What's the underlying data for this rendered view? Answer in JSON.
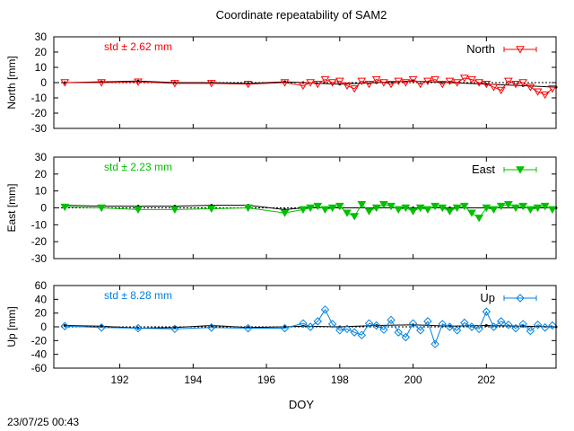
{
  "figure": {
    "title": "Coordinate repeatability of SAM2",
    "xlabel": "DOY",
    "timestamp": "23/07/25 00:43",
    "x_ticks": [
      192,
      194,
      196,
      198,
      200,
      202
    ],
    "xlim": [
      190.2,
      203.9
    ]
  },
  "chart_data": [
    {
      "type": "line",
      "name": "North",
      "ylabel": "North [mm]",
      "stat": "std ± 2.62 mm",
      "legend": "North",
      "legend_position": "top-right",
      "color": "#ff0000",
      "marker": "triangle-down-open",
      "ylim": [
        -30,
        30
      ],
      "y_ticks": [
        30,
        20,
        10,
        0,
        -10,
        -20,
        -30
      ],
      "reference_x": [
        190.5,
        191.5,
        192.5,
        193.5,
        194.5,
        195.5,
        196.5,
        197.0,
        198.0,
        199.0,
        200.0,
        201.0,
        202.0,
        203.0,
        203.9
      ],
      "reference_y": [
        0,
        0.5,
        1,
        0,
        0,
        -0.5,
        0.5,
        0,
        -1,
        0,
        1,
        0,
        -1,
        -2,
        -3
      ],
      "x": [
        190.5,
        191.5,
        192.5,
        193.5,
        194.5,
        195.5,
        196.5,
        197.0,
        197.2,
        197.4,
        197.6,
        197.8,
        198.0,
        198.2,
        198.4,
        198.6,
        198.8,
        199.0,
        199.2,
        199.4,
        199.6,
        199.8,
        200.0,
        200.2,
        200.4,
        200.6,
        200.8,
        201.0,
        201.2,
        201.4,
        201.6,
        201.8,
        202.0,
        202.2,
        202.4,
        202.6,
        202.8,
        203.0,
        203.2,
        203.4,
        203.6,
        203.8
      ],
      "y": [
        0,
        0,
        0.5,
        -0.5,
        -0.5,
        -1,
        0,
        -2,
        0,
        -1,
        2,
        0,
        1,
        -2,
        -4,
        1,
        -1,
        2,
        0,
        -1,
        1,
        0,
        2,
        -1,
        1,
        2,
        -1,
        1,
        0,
        3,
        2,
        0,
        -1,
        -3,
        -5,
        1,
        -1,
        0,
        -3,
        -6,
        -8,
        -4
      ]
    },
    {
      "type": "line",
      "name": "East",
      "ylabel": "East [mm]",
      "stat": "std ± 2.23 mm",
      "legend": "East",
      "legend_position": "top-right",
      "color": "#00c000",
      "marker": "triangle-down-filled",
      "ylim": [
        -30,
        30
      ],
      "y_ticks": [
        30,
        20,
        10,
        0,
        -10,
        -20,
        -30
      ],
      "reference_x": [
        190.5,
        191.5,
        192.5,
        193.5,
        194.5,
        195.5,
        196.5,
        197.0,
        198.0,
        199.0,
        200.0,
        201.0,
        202.0,
        203.0,
        203.9
      ],
      "reference_y": [
        1.5,
        1,
        1,
        1,
        1.5,
        1.5,
        -1,
        0,
        0,
        0,
        0,
        0,
        0,
        0,
        0
      ],
      "x": [
        190.5,
        191.5,
        192.5,
        193.5,
        194.5,
        195.5,
        196.5,
        197.0,
        197.2,
        197.4,
        197.6,
        197.8,
        198.0,
        198.2,
        198.4,
        198.6,
        198.8,
        199.0,
        199.2,
        199.4,
        199.6,
        199.8,
        200.0,
        200.2,
        200.4,
        200.6,
        200.8,
        201.0,
        201.2,
        201.4,
        201.6,
        201.8,
        202.0,
        202.2,
        202.4,
        202.6,
        202.8,
        203.0,
        203.2,
        203.4,
        203.6,
        203.8
      ],
      "y": [
        0.5,
        0,
        -1,
        -1,
        -0.5,
        0,
        -3,
        -1,
        0,
        1,
        -1,
        0,
        1,
        -3,
        -5,
        2,
        -2,
        0,
        2,
        1,
        -1,
        0,
        -2,
        0,
        -1,
        1,
        0,
        -2,
        0,
        1,
        -3,
        -6,
        0,
        -1,
        1,
        2,
        0,
        1,
        -1,
        0,
        1,
        -1
      ]
    },
    {
      "type": "line",
      "name": "Up",
      "ylabel": "Up [mm]",
      "stat": "std ± 8.28 mm",
      "legend": "Up",
      "legend_position": "top-right",
      "color": "#0080e0",
      "marker": "diamond-open",
      "ylim": [
        -60,
        60
      ],
      "y_ticks": [
        60,
        40,
        20,
        0,
        -20,
        -40,
        -60
      ],
      "reference_x": [
        190.5,
        191.5,
        192.5,
        193.5,
        194.5,
        195.5,
        196.5,
        197.0,
        198.0,
        199.0,
        200.0,
        201.0,
        202.0,
        203.0,
        203.9
      ],
      "reference_y": [
        2,
        1,
        -2,
        -1,
        2,
        -1,
        0,
        1,
        0,
        2,
        3,
        1,
        2,
        1,
        0
      ],
      "x": [
        190.5,
        191.5,
        192.5,
        193.5,
        194.5,
        195.5,
        196.5,
        197.0,
        197.2,
        197.4,
        197.6,
        197.8,
        198.0,
        198.2,
        198.4,
        198.6,
        198.8,
        199.0,
        199.2,
        199.4,
        199.6,
        199.8,
        200.0,
        200.2,
        200.4,
        200.6,
        200.8,
        201.0,
        201.2,
        201.4,
        201.6,
        201.8,
        202.0,
        202.2,
        202.4,
        202.6,
        202.8,
        203.0,
        203.2,
        203.4,
        203.6,
        203.8
      ],
      "y": [
        1,
        -1,
        -2,
        -3,
        -1,
        -2,
        -2,
        5,
        0,
        8,
        25,
        4,
        -5,
        -3,
        -8,
        -12,
        5,
        2,
        -4,
        10,
        -8,
        -15,
        5,
        -5,
        8,
        -25,
        4,
        0,
        -5,
        6,
        0,
        -3,
        22,
        0,
        8,
        3,
        -2,
        4,
        -6,
        3,
        -1,
        2
      ]
    }
  ]
}
